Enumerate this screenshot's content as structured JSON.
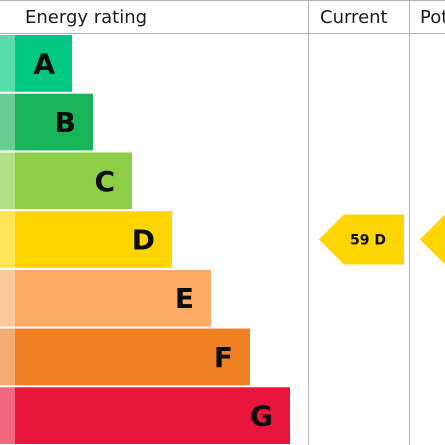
{
  "header": {
    "rating_label": "Energy rating",
    "current_label": "Current",
    "potential_label": "Pot"
  },
  "chart_data": {
    "type": "bar",
    "categories": [
      "A",
      "B",
      "C",
      "D",
      "E",
      "F",
      "G"
    ],
    "band_colors": [
      "#00c781",
      "#19b459",
      "#8dce46",
      "#ffd500",
      "#fcaa65",
      "#ef8023",
      "#e9153b"
    ],
    "current": {
      "score": 59,
      "band": "D",
      "label": "59 D",
      "color": "#ffd500"
    },
    "potential": {
      "band": "D",
      "color": "#ffd500"
    }
  }
}
